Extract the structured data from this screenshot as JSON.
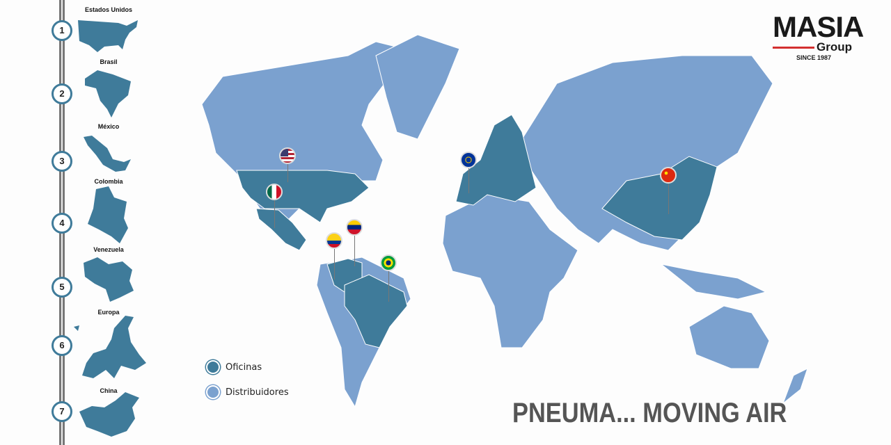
{
  "logo": {
    "main": "MASIA",
    "sub": "Group",
    "since": "SINCE 1987"
  },
  "steps": [
    {
      "number": "1",
      "country": "Estados Unidos"
    },
    {
      "number": "2",
      "country": "Brasil"
    },
    {
      "number": "3",
      "country": "México"
    },
    {
      "number": "4",
      "country": "Colombia"
    },
    {
      "number": "5",
      "country": "Venezuela"
    },
    {
      "number": "6",
      "country": "Europa"
    },
    {
      "number": "7",
      "country": "China"
    }
  ],
  "legend": {
    "offices": "Oficinas",
    "distributors": "Distribuidores"
  },
  "slogan": "PNEUMA... MOVING AIR",
  "colors": {
    "offices": "#3f7b9a",
    "distributors": "#7ba1cf",
    "rail": "#777777",
    "logo_accent": "#d32f2f"
  },
  "pins": [
    "united-states-flag",
    "mexico-flag",
    "colombia-flag",
    "venezuela-flag",
    "brazil-flag",
    "european-union-flag",
    "china-flag"
  ]
}
